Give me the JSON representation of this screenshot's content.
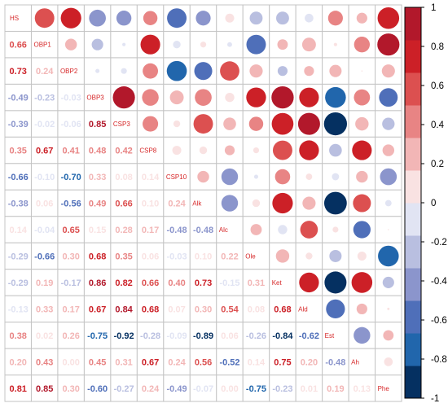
{
  "chart_data": {
    "type": "heatmap",
    "variables": [
      "HS",
      "OBP1",
      "OBP2",
      "OBP3",
      "CSP3",
      "CSP8",
      "CSP10",
      "Alk",
      "Alc",
      "Ole",
      "Ket",
      "Ald",
      "Est",
      "Ah",
      "Phe"
    ],
    "matrix": [
      [
        1.0,
        0.66,
        0.73,
        -0.49,
        -0.39,
        0.35,
        -0.66,
        -0.38,
        0.14,
        -0.29,
        -0.29,
        -0.13,
        0.38,
        0.2,
        0.81
      ],
      [
        0.66,
        1.0,
        0.24,
        -0.23,
        -0.02,
        0.67,
        -0.1,
        0.06,
        -0.04,
        -0.66,
        0.19,
        0.33,
        0.02,
        0.43,
        0.85
      ],
      [
        0.73,
        0.24,
        1.0,
        -0.03,
        -0.06,
        0.41,
        -0.7,
        -0.56,
        0.65,
        0.3,
        -0.17,
        0.17,
        0.26,
        0.0,
        0.3
      ],
      [
        -0.49,
        -0.23,
        -0.03,
        1.0,
        0.85,
        0.48,
        0.33,
        0.49,
        0.15,
        0.68,
        0.86,
        0.67,
        -0.75,
        0.45,
        -0.6
      ],
      [
        -0.39,
        -0.02,
        -0.06,
        0.85,
        1.0,
        0.42,
        0.08,
        0.66,
        0.28,
        0.35,
        0.82,
        0.84,
        -0.92,
        0.31,
        -0.27
      ],
      [
        0.35,
        0.67,
        0.41,
        0.48,
        0.42,
        1.0,
        0.14,
        0.1,
        0.17,
        0.06,
        0.66,
        0.68,
        -0.28,
        0.67,
        0.24
      ],
      [
        -0.66,
        -0.1,
        -0.7,
        0.33,
        0.08,
        0.14,
        1.0,
        0.24,
        -0.48,
        -0.03,
        0.4,
        0.07,
        -0.09,
        0.24,
        -0.49
      ],
      [
        -0.38,
        0.06,
        -0.56,
        0.49,
        0.66,
        0.1,
        0.24,
        1.0,
        -0.48,
        0.1,
        0.73,
        0.3,
        -0.89,
        0.56,
        -0.07
      ],
      [
        0.14,
        -0.04,
        0.65,
        0.15,
        0.28,
        0.17,
        -0.48,
        -0.48,
        1.0,
        0.22,
        -0.15,
        0.54,
        0.06,
        -0.52,
        0.0
      ],
      [
        -0.29,
        -0.66,
        0.3,
        0.68,
        0.35,
        0.06,
        -0.03,
        0.1,
        0.22,
        1.0,
        0.31,
        0.08,
        -0.26,
        0.14,
        -0.75
      ],
      [
        -0.29,
        0.19,
        -0.17,
        0.86,
        0.82,
        0.66,
        0.4,
        0.73,
        -0.15,
        0.31,
        1.0,
        0.68,
        -0.84,
        0.75,
        -0.23
      ],
      [
        -0.13,
        0.33,
        0.17,
        0.67,
        0.84,
        0.68,
        0.07,
        0.3,
        0.54,
        0.08,
        0.68,
        1.0,
        -0.62,
        0.2,
        0.01
      ],
      [
        0.38,
        0.02,
        0.26,
        -0.75,
        -0.92,
        -0.28,
        -0.09,
        -0.89,
        0.06,
        -0.26,
        -0.84,
        -0.62,
        1.0,
        -0.48,
        0.19
      ],
      [
        0.2,
        0.43,
        0.0,
        0.45,
        0.31,
        0.67,
        0.24,
        0.56,
        -0.52,
        0.14,
        0.75,
        0.2,
        -0.48,
        1.0,
        0.13
      ],
      [
        0.81,
        0.85,
        0.3,
        -0.6,
        -0.27,
        0.24,
        -0.49,
        -0.07,
        0.0,
        -0.75,
        -0.23,
        0.01,
        0.19,
        0.13,
        1.0
      ]
    ],
    "lower": "number",
    "upper": "circle",
    "colorbar": {
      "range": [
        -1,
        1
      ],
      "ticks": [
        "1",
        "0.8",
        "0.6",
        "0.4",
        "0.2",
        "0",
        "-0.2",
        "-0.4",
        "-0.6",
        "-0.8",
        "-1"
      ],
      "colors": [
        "#053061",
        "#2166ac",
        "#4f6fb9",
        "#8b95cc",
        "#b9bfe0",
        "#e1e4f3",
        "#f9e2e2",
        "#f2b6b6",
        "#e88484",
        "#dc5050",
        "#cc2027",
        "#b2182b"
      ]
    },
    "grid": true
  }
}
